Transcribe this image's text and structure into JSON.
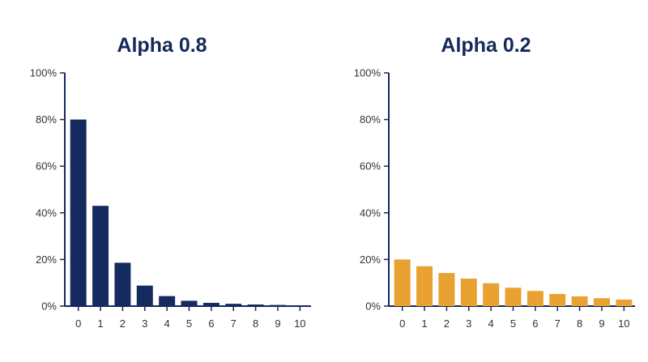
{
  "chart_data": [
    {
      "type": "bar",
      "title": "Alpha 0.8",
      "color": "#152a5e",
      "categories": [
        "0",
        "1",
        "2",
        "3",
        "4",
        "5",
        "6",
        "7",
        "8",
        "9",
        "10"
      ],
      "values": [
        80,
        43,
        18.6,
        8.8,
        4.3,
        2.3,
        1.4,
        1.0,
        0.7,
        0.5,
        0.3
      ],
      "y_tick_labels": [
        "0%",
        "20%",
        "40%",
        "60%",
        "80%",
        "100%"
      ],
      "ylim": [
        0,
        100
      ],
      "grid": false
    },
    {
      "type": "bar",
      "title": "Alpha 0.2",
      "color": "#e9a132",
      "categories": [
        "0",
        "1",
        "2",
        "3",
        "4",
        "5",
        "6",
        "7",
        "8",
        "9",
        "10"
      ],
      "values": [
        20,
        17.1,
        14.2,
        11.8,
        9.8,
        7.9,
        6.5,
        5.2,
        4.2,
        3.4,
        2.8
      ],
      "y_tick_labels": [
        "0%",
        "20%",
        "40%",
        "60%",
        "80%",
        "100%"
      ],
      "ylim": [
        0,
        100
      ],
      "grid": false
    }
  ]
}
